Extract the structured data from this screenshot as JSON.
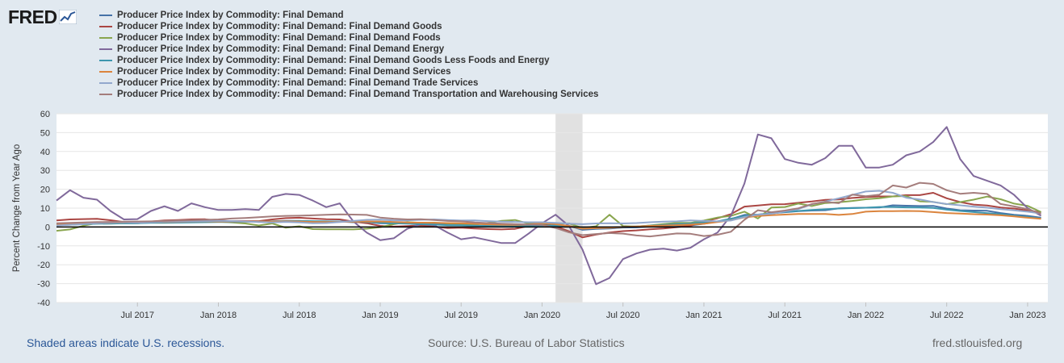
{
  "brand": {
    "logo_text": "FRED",
    "logo_icon": "line-chart-icon"
  },
  "footer": {
    "recession_note": "Shaded areas indicate U.S. recessions.",
    "source": "Source: U.S. Bureau of Labor Statistics",
    "site": "fred.stlouisfed.org"
  },
  "chart_data": {
    "type": "line",
    "title": "",
    "xlabel": "",
    "ylabel": "Percent Change from Year Ago",
    "ylim": [
      -40,
      60
    ],
    "yticks": [
      -40,
      -30,
      -20,
      -10,
      0,
      10,
      20,
      30,
      40,
      50,
      60
    ],
    "y_tick_labels": [
      "-40",
      "-30",
      "-20",
      "-10",
      "0",
      "10",
      "20",
      "30",
      "40",
      "50",
      "60"
    ],
    "x_start": "2017-01",
    "x_end": "2023-02",
    "x_tick_labels": [
      "Jul 2017",
      "Jan 2018",
      "Jul 2018",
      "Jan 2019",
      "Jul 2019",
      "Jan 2020",
      "Jul 2020",
      "Jan 2021",
      "Jul 2021",
      "Jan 2022",
      "Jul 2022",
      "Jan 2023"
    ],
    "x_tick_month_index": [
      6,
      12,
      18,
      24,
      30,
      36,
      42,
      48,
      54,
      60,
      66,
      72
    ],
    "recession": {
      "start_index": 37,
      "end_index": 39
    },
    "series": [
      {
        "name": "Producer Price Index by Commodity: Final Demand",
        "color": "#4572a7",
        "values": [
          1.6,
          2.0,
          2.3,
          2.5,
          2.4,
          2.0,
          2.0,
          2.4,
          2.7,
          2.8,
          3.1,
          3.3,
          2.8,
          2.9,
          3.0,
          2.7,
          3.0,
          3.3,
          3.3,
          2.8,
          2.7,
          2.9,
          2.5,
          2.6,
          2.0,
          1.9,
          2.2,
          2.3,
          2.0,
          1.7,
          1.7,
          1.8,
          1.4,
          1.1,
          1.1,
          1.3,
          2.1,
          1.3,
          0.6,
          -1.5,
          -1.0,
          -0.8,
          -0.3,
          -0.2,
          0.3,
          0.5,
          0.8,
          0.8,
          1.7,
          2.8,
          4.2,
          6.4,
          6.6,
          7.3,
          7.8,
          8.4,
          8.7,
          8.9,
          9.9,
          10.1,
          10.2,
          10.3,
          11.5,
          11.3,
          11.1,
          11.2,
          9.8,
          8.9,
          8.7,
          8.6,
          7.4,
          6.5,
          5.9,
          4.9
        ]
      },
      {
        "name": "Producer Price Index by Commodity: Final Demand: Final Demand Goods",
        "color": "#aa4643",
        "values": [
          3.5,
          4.0,
          4.2,
          4.3,
          3.6,
          2.6,
          2.4,
          2.9,
          3.5,
          3.7,
          4.0,
          4.1,
          3.4,
          3.1,
          3.1,
          3.1,
          4.0,
          4.7,
          4.9,
          4.5,
          4.1,
          4.0,
          2.9,
          2.0,
          0.6,
          0.2,
          0.5,
          0.8,
          0.2,
          -0.6,
          -0.4,
          -0.8,
          -1.1,
          -1.3,
          -1.0,
          0.5,
          1.4,
          0.4,
          -2.3,
          -5.5,
          -4.0,
          -2.9,
          -2.2,
          -1.8,
          -1.2,
          -0.8,
          -0.1,
          0.7,
          3.0,
          4.6,
          6.8,
          10.8,
          11.4,
          12.0,
          12.1,
          12.8,
          13.5,
          14.4,
          14.6,
          15.4,
          15.9,
          16.2,
          16.2,
          16.9,
          16.9,
          18.1,
          15.2,
          13.2,
          11.9,
          11.4,
          10.3,
          9.8,
          8.7,
          7.8
        ]
      },
      {
        "name": "Producer Price Index by Commodity: Final Demand: Final Demand Foods",
        "color": "#89a54e",
        "values": [
          -2.0,
          -1.3,
          0.7,
          2.1,
          1.9,
          2.1,
          2.0,
          2.5,
          3.0,
          2.8,
          2.6,
          2.8,
          2.8,
          2.4,
          1.9,
          0.8,
          1.9,
          -0.4,
          0.4,
          -1.1,
          -1.2,
          -1.2,
          -1.3,
          -0.9,
          -0.1,
          1.5,
          2.6,
          2.2,
          2.3,
          1.9,
          1.7,
          1.2,
          2.2,
          3.3,
          3.7,
          1.8,
          1.8,
          1.9,
          1.9,
          -0.6,
          0.4,
          6.5,
          0.5,
          0.2,
          0.8,
          1.6,
          2.2,
          2.2,
          3.4,
          5.0,
          5.9,
          8.1,
          4.5,
          10.3,
          10.6,
          12.4,
          11.1,
          12.7,
          13.1,
          13.8,
          14.7,
          15.2,
          16.2,
          16.4,
          13.6,
          13.3,
          12.1,
          13.2,
          14.5,
          16.1,
          14.7,
          12.4,
          11.2,
          7.9
        ]
      },
      {
        "name": "Producer Price Index by Commodity: Final Demand: Final Demand Energy",
        "color": "#80699b",
        "values": [
          14,
          19.5,
          15.5,
          14.5,
          8.5,
          4,
          4.2,
          8.5,
          11,
          8.5,
          12.5,
          10.5,
          9,
          9,
          9.5,
          9,
          16,
          17.5,
          17,
          14,
          10.5,
          12.5,
          3,
          -3,
          -7,
          -6,
          -1,
          1.5,
          1,
          -3,
          -6.5,
          -5.5,
          -7,
          -8.5,
          -8.5,
          -3.5,
          2,
          6.5,
          0.5,
          -12,
          -30.3,
          -27,
          -17,
          -14,
          -12,
          -11.5,
          -12.5,
          -11,
          -6.5,
          -3,
          6,
          23,
          49,
          47,
          36,
          34,
          33,
          36.5,
          43,
          43,
          31.5,
          31.5,
          33,
          38,
          40,
          45,
          53,
          36,
          27,
          24.5,
          22,
          17,
          10,
          6
        ]
      },
      {
        "name": "Producer Price Index by Commodity: Final Demand: Final Demand Goods Less Foods and Energy",
        "color": "#3d96ae",
        "values": [
          1.0,
          1.2,
          1.5,
          1.7,
          1.8,
          2.0,
          2.0,
          2.2,
          2.2,
          2.3,
          2.4,
          2.5,
          2.6,
          2.6,
          2.8,
          2.9,
          3.0,
          3.1,
          3.2,
          3.1,
          3.0,
          2.9,
          2.8,
          2.6,
          2.3,
          2.0,
          1.8,
          1.5,
          1.3,
          1.0,
          0.9,
          0.7,
          0.6,
          0.5,
          0.4,
          0.5,
          0.8,
          0.7,
          0.4,
          -0.6,
          -0.5,
          -0.3,
          0.0,
          0.3,
          0.7,
          1.1,
          1.5,
          1.9,
          2.4,
          3.0,
          4.4,
          5.8,
          6.5,
          7.2,
          8.0,
          8.5,
          9.0,
          9.4,
          9.8,
          10.0,
          10.2,
          10.6,
          10.6,
          10.4,
          10.3,
          10.1,
          9.2,
          8.5,
          7.9,
          7.3,
          6.8,
          6.0,
          5.3,
          4.5
        ]
      },
      {
        "name": "Producer Price Index by Commodity: Final Demand: Final Demand Services",
        "color": "#db843d",
        "values": [
          1.2,
          1.5,
          1.7,
          2.0,
          2.2,
          2.4,
          2.5,
          2.6,
          2.6,
          2.7,
          2.9,
          3.0,
          2.9,
          2.9,
          2.9,
          2.9,
          2.9,
          3.0,
          2.9,
          2.7,
          2.6,
          2.7,
          2.8,
          2.9,
          2.9,
          2.7,
          2.4,
          2.3,
          2.2,
          2.1,
          2.0,
          1.7,
          1.4,
          1.2,
          1.1,
          1.3,
          2.1,
          1.5,
          0.5,
          -0.9,
          -0.6,
          -0.4,
          0.0,
          0.3,
          0.6,
          0.8,
          1.0,
          1.3,
          1.7,
          2.6,
          3.6,
          5.1,
          5.8,
          6.3,
          6.6,
          6.9,
          6.9,
          6.9,
          6.4,
          6.9,
          8.1,
          8.4,
          8.4,
          8.5,
          8.4,
          7.9,
          7.4,
          7.1,
          6.8,
          6.6,
          6.2,
          5.6,
          4.9,
          4.3
        ]
      },
      {
        "name": "Producer Price Index by Commodity: Final Demand: Final Demand Trade Services",
        "color": "#92a8cd",
        "values": [
          0.8,
          1.2,
          1.5,
          2.0,
          2.3,
          2.5,
          2.2,
          2.5,
          2.8,
          2.8,
          3.0,
          3.1,
          3.3,
          3.1,
          2.9,
          2.6,
          2.4,
          2.7,
          2.4,
          2.0,
          2.1,
          2.6,
          3.2,
          3.8,
          3.9,
          3.5,
          3.5,
          3.8,
          4.0,
          3.7,
          3.4,
          3.5,
          3.1,
          2.8,
          2.7,
          2.5,
          2.5,
          2.2,
          1.8,
          1.5,
          1.9,
          2.0,
          1.9,
          2.1,
          2.5,
          2.8,
          3.0,
          3.5,
          3.2,
          3.0,
          3.4,
          5.3,
          6.5,
          7.0,
          8.2,
          9.5,
          12.0,
          13.5,
          15.2,
          17.0,
          18.8,
          19.2,
          18.1,
          15.5,
          14.6,
          13.2,
          12.2,
          11.5,
          10.8,
          10.2,
          9.5,
          8.8,
          8.1,
          7.2
        ]
      },
      {
        "name": "Producer Price Index by Commodity: Final Demand: Final Demand Transportation and Warehousing Services",
        "color": "#a47d7c",
        "values": [
          2.0,
          2.2,
          2.4,
          2.6,
          2.7,
          2.8,
          2.9,
          3.0,
          3.2,
          3.4,
          3.6,
          3.8,
          4.0,
          4.5,
          4.8,
          5.2,
          5.6,
          5.9,
          6.0,
          6.2,
          6.5,
          6.7,
          6.6,
          6.4,
          5.0,
          4.4,
          4.0,
          4.1,
          3.7,
          3.2,
          3.0,
          2.4,
          2.1,
          1.8,
          1.5,
          1.3,
          1.1,
          -0.5,
          -2.8,
          -4.3,
          -3.7,
          -3.2,
          -3.5,
          -4.5,
          -5.0,
          -4.2,
          -3.4,
          -3.6,
          -4.8,
          -4.1,
          -2.5,
          3.8,
          8.9,
          7.8,
          8.7,
          9.9,
          12.2,
          13.3,
          12.6,
          17.2,
          16.3,
          17.1,
          22.0,
          20.9,
          23.4,
          22.8,
          19.5,
          17.6,
          18.1,
          17.5,
          12.2,
          10.9,
          9.5,
          7.1
        ]
      }
    ]
  }
}
